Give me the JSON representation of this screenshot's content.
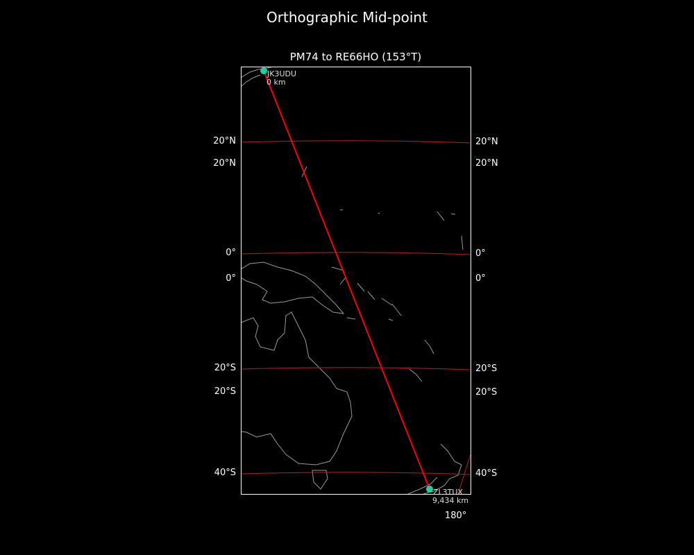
{
  "title": "Orthographic Mid-point",
  "subtitle": "PM74 to RE66HO (153°T)",
  "stations": [
    {
      "call": "JK3UDU",
      "distance": "0 km"
    },
    {
      "call": "ZL3TUX",
      "distance": "9,434 km"
    }
  ],
  "lat_labels_left": [
    "20°N",
    "20°N",
    "0°",
    "0°",
    "20°S",
    "20°S",
    "40°S"
  ],
  "lat_labels_right": [
    "20°N",
    "20°N",
    "0°",
    "0°",
    "20°S",
    "20°S",
    "40°S"
  ],
  "lon_labels": [
    "180°"
  ],
  "colors": {
    "path": "#ff0000",
    "graticule": "#b22222",
    "coast": "#999999",
    "station": "#1fd1a0",
    "background": "#000000"
  }
}
